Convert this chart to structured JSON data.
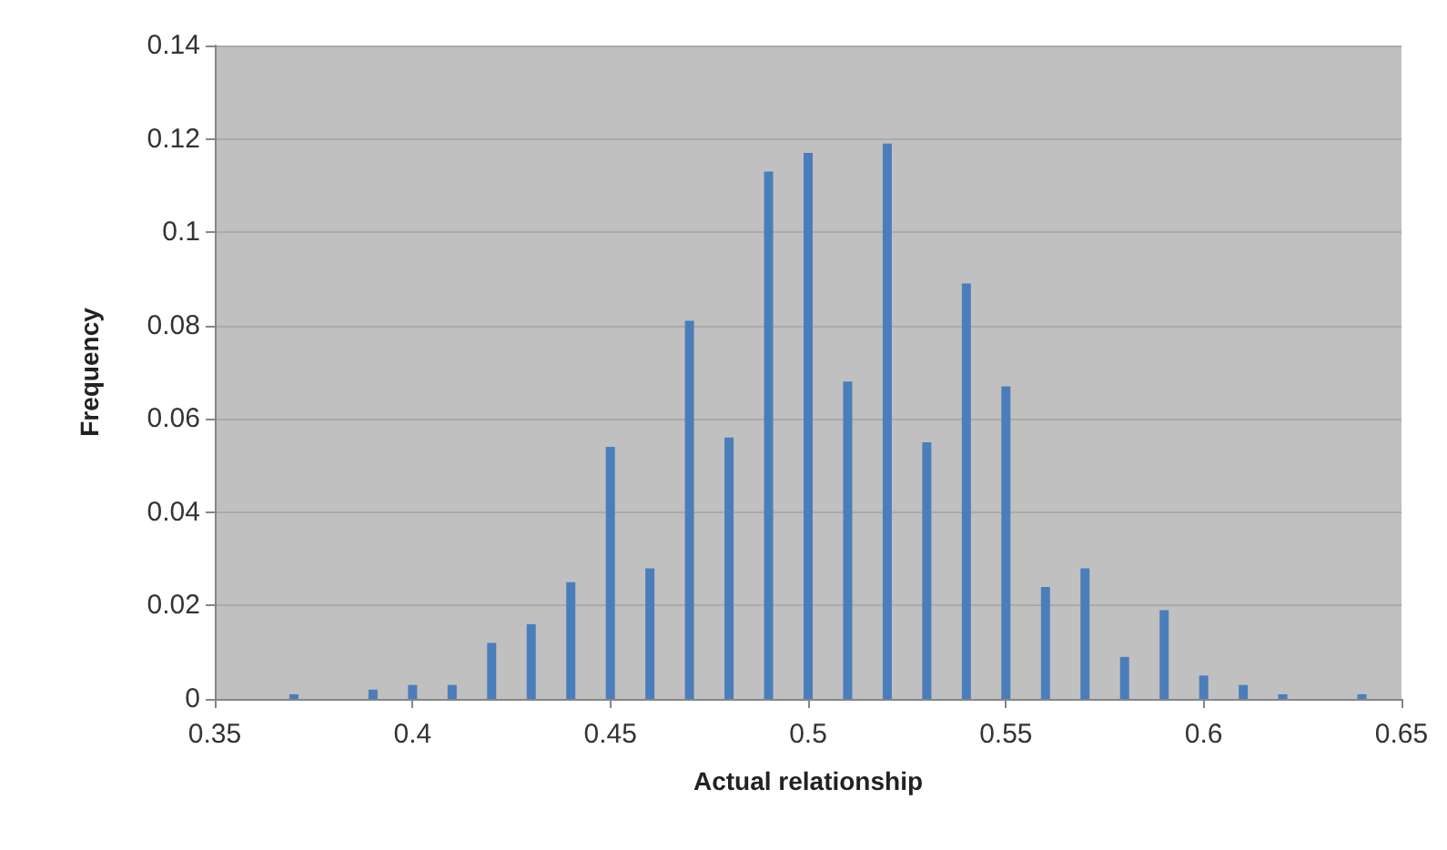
{
  "chart_data": {
    "type": "bar",
    "xlabel": "Actual relationship",
    "ylabel": "Frequency",
    "x": [
      0.37,
      0.39,
      0.4,
      0.41,
      0.42,
      0.43,
      0.44,
      0.45,
      0.46,
      0.47,
      0.48,
      0.49,
      0.5,
      0.51,
      0.52,
      0.53,
      0.54,
      0.55,
      0.56,
      0.57,
      0.58,
      0.59,
      0.6,
      0.61,
      0.62,
      0.64
    ],
    "values": [
      0.001,
      0.002,
      0.003,
      0.003,
      0.012,
      0.016,
      0.025,
      0.054,
      0.028,
      0.081,
      0.056,
      0.113,
      0.117,
      0.068,
      0.119,
      0.055,
      0.089,
      0.067,
      0.024,
      0.028,
      0.009,
      0.019,
      0.005,
      0.003,
      0.001,
      0.001
    ],
    "color": "#4a7ebb",
    "xlim": [
      0.35,
      0.65
    ],
    "xticks": [
      0.35,
      0.4,
      0.45,
      0.5,
      0.55,
      0.6,
      0.65
    ],
    "ylim": [
      0,
      0.14
    ],
    "yticks": [
      0,
      0.02,
      0.04,
      0.06,
      0.08,
      0.1,
      0.12,
      0.14
    ],
    "grid": "y"
  }
}
